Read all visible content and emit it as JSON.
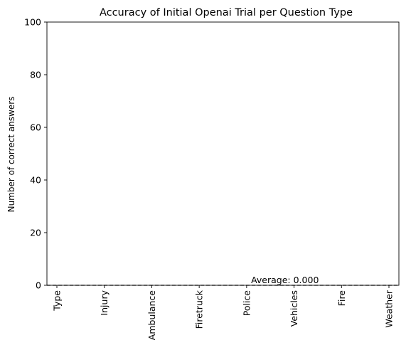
{
  "chart_data": {
    "type": "bar",
    "title": "Accuracy of Initial Openai Trial per Question Type",
    "xlabel": "",
    "ylabel": "Number of correct answers",
    "categories": [
      "Type",
      "Injury",
      "Ambulance",
      "Firetruck",
      "Police",
      "Vehicles",
      "Fire",
      "Weather"
    ],
    "values": [
      0,
      0,
      0,
      0,
      0,
      0,
      0,
      0
    ],
    "ylim": [
      0,
      100
    ],
    "yticks": [
      0,
      20,
      40,
      60,
      80,
      100
    ],
    "grid": false,
    "average_line": {
      "value": 0.0,
      "label": "Average: 0.000",
      "style": "dashed",
      "color": "#000000"
    }
  }
}
